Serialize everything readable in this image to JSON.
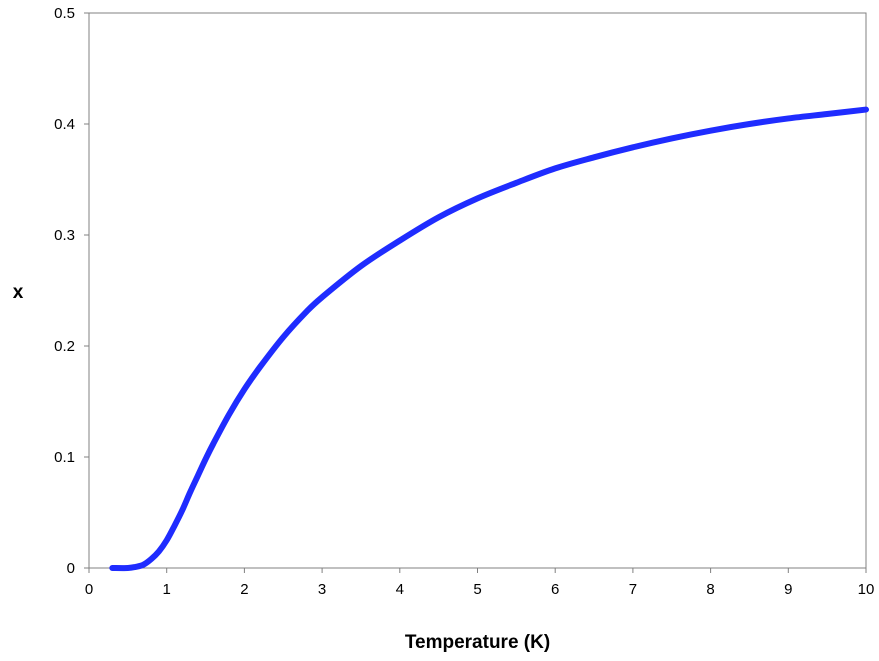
{
  "chart_data": {
    "type": "line",
    "title": "",
    "xlabel": "Temperature (K)",
    "ylabel": "x",
    "xlim": [
      0,
      10
    ],
    "ylim": [
      0,
      0.5
    ],
    "xticks": [
      "0",
      "1",
      "2",
      "3",
      "4",
      "5",
      "6",
      "7",
      "8",
      "9",
      "10"
    ],
    "yticks": [
      "0",
      "0.1",
      "0.2",
      "0.3",
      "0.4",
      "0.5"
    ],
    "grid": false,
    "legend": "none",
    "series": [
      {
        "color": "#1f2cff",
        "x": [
          0.3,
          0.5,
          0.6,
          0.7,
          0.8,
          0.9,
          1.0,
          1.1,
          1.2,
          1.3,
          1.4,
          1.5,
          1.6,
          1.8,
          2.0,
          2.2,
          2.5,
          2.8,
          3.0,
          3.5,
          4.0,
          4.5,
          5.0,
          5.5,
          6.0,
          6.5,
          7.0,
          7.5,
          8.0,
          8.5,
          9.0,
          9.5,
          10.0
        ],
        "y": [
          0.0,
          0.0,
          0.001,
          0.003,
          0.008,
          0.015,
          0.025,
          0.038,
          0.052,
          0.068,
          0.083,
          0.098,
          0.112,
          0.138,
          0.161,
          0.181,
          0.208,
          0.231,
          0.244,
          0.272,
          0.295,
          0.316,
          0.333,
          0.347,
          0.36,
          0.37,
          0.379,
          0.387,
          0.394,
          0.4,
          0.405,
          0.409,
          0.413
        ]
      }
    ]
  }
}
